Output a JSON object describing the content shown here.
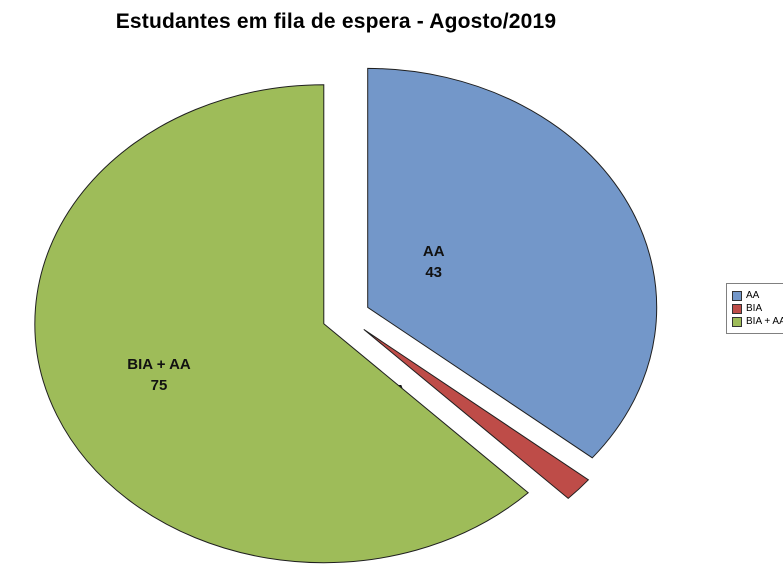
{
  "chart_data": {
    "type": "pie",
    "title": "Estudantes em fila de espera - Agosto/2019",
    "categories": [
      "AA",
      "BIA",
      "BIA + AA"
    ],
    "values": [
      43,
      2,
      75
    ],
    "colors": [
      "#7397C9",
      "#BE4C48",
      "#9EBC59"
    ],
    "stroke_color": "#1f1f1f",
    "label_color": "#111111",
    "start_angle_deg": 0,
    "direction": "clockwise",
    "exploded": true,
    "legend_position": "right",
    "legend_items": [
      "AA",
      "BIA",
      "BIA + AA"
    ]
  }
}
